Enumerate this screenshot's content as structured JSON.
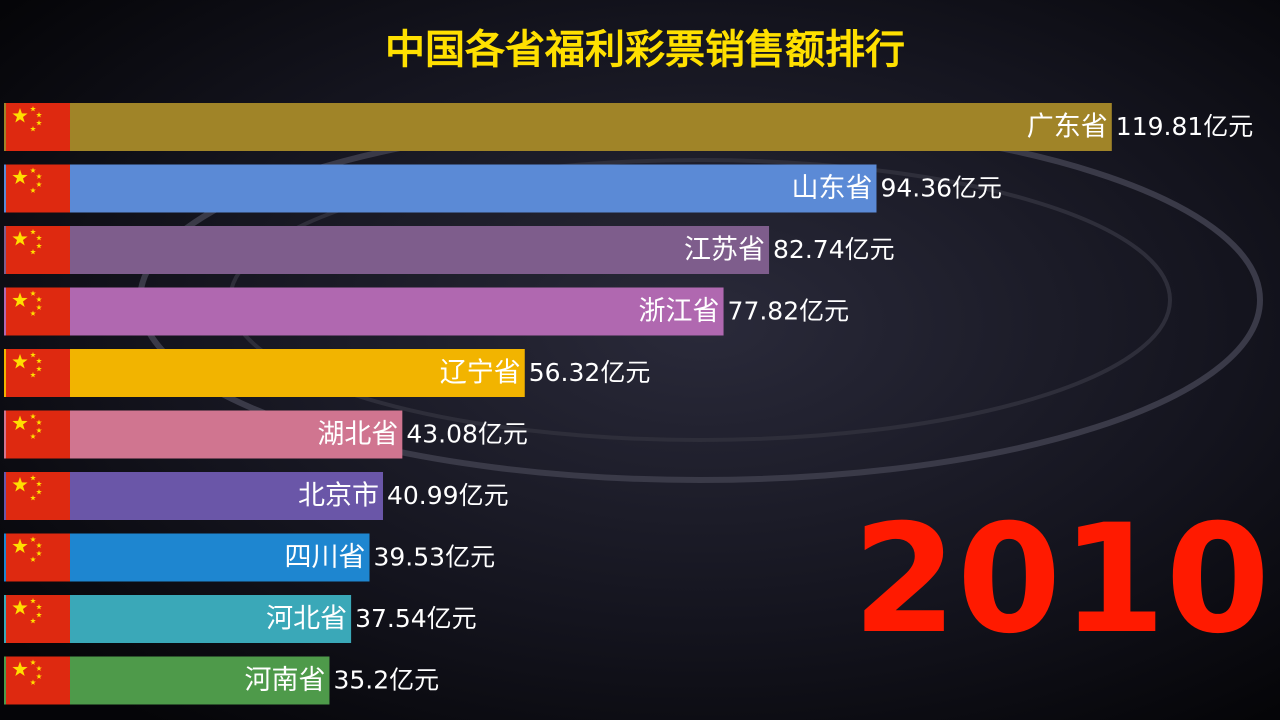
{
  "chart_data": {
    "type": "bar",
    "orientation": "horizontal",
    "title": "中国各省福利彩票销售额排行",
    "annotation": "2010",
    "categories": [
      "广东省",
      "山东省",
      "江苏省",
      "浙江省",
      "辽宁省",
      "湖北省",
      "北京市",
      "四川省",
      "河北省",
      "河南省"
    ],
    "values": [
      119.81,
      94.36,
      82.74,
      77.82,
      56.32,
      43.08,
      40.99,
      39.53,
      37.54,
      35.2
    ],
    "value_labels": [
      "119.81亿元",
      "94.36亿元",
      "82.74亿元",
      "77.82亿元",
      "56.32亿元",
      "43.08亿元",
      "40.99亿元",
      "39.53亿元",
      "37.54亿元",
      "35.2亿元"
    ],
    "colors": [
      "#a08428",
      "#5b8ad6",
      "#7e5d8c",
      "#b068b0",
      "#f2b400",
      "#d07590",
      "#6a56a8",
      "#1e86d0",
      "#3aa8b8",
      "#4e9a4a"
    ],
    "xlim": [
      0,
      138
    ]
  }
}
